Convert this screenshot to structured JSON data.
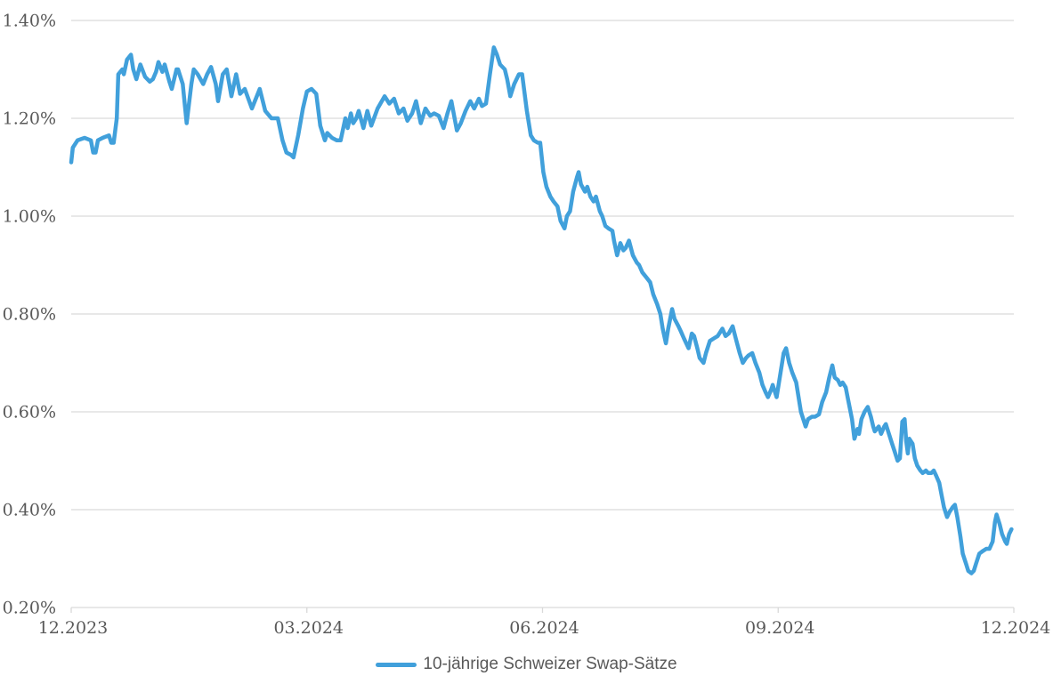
{
  "chart_data": {
    "type": "line",
    "title": "",
    "xlabel": "",
    "ylabel": "",
    "xlim": [
      0,
      12
    ],
    "ylim": [
      0.2,
      1.4
    ],
    "grid": "horizontal",
    "legend_position": "bottom-center",
    "background_color": "#FFFFFF",
    "gridline_color": "#D9D9D9",
    "axis_label_color": "#595959",
    "x_unit": "months since 12.2023",
    "y_unit": "percent",
    "x_ticks": [
      {
        "t": 0,
        "label": "12.2023"
      },
      {
        "t": 3,
        "label": "03.2024"
      },
      {
        "t": 6,
        "label": "06.2024"
      },
      {
        "t": 9,
        "label": "09.2024"
      },
      {
        "t": 12,
        "label": "12.2024"
      }
    ],
    "y_ticks": [
      {
        "v": 1.4,
        "label": "1.40%"
      },
      {
        "v": 1.2,
        "label": "1.20%"
      },
      {
        "v": 1.0,
        "label": "1.00%"
      },
      {
        "v": 0.8,
        "label": "0.80%"
      },
      {
        "v": 0.6,
        "label": "0.60%"
      },
      {
        "v": 0.4,
        "label": "0.40%"
      },
      {
        "v": 0.2,
        "label": "0.20%"
      }
    ],
    "series": [
      {
        "name": "10-jährige Schweizer Swap-Sätze",
        "color": "#41A0DB",
        "line_width": 4.5,
        "points": [
          [
            0,
            1.11
          ],
          [
            0.02,
            1.14
          ],
          [
            0.08,
            1.155
          ],
          [
            0.17,
            1.16
          ],
          [
            0.25,
            1.155
          ],
          [
            0.28,
            1.13
          ],
          [
            0.31,
            1.13
          ],
          [
            0.34,
            1.155
          ],
          [
            0.4,
            1.16
          ],
          [
            0.48,
            1.165
          ],
          [
            0.51,
            1.15
          ],
          [
            0.54,
            1.15
          ],
          [
            0.58,
            1.2
          ],
          [
            0.6,
            1.29
          ],
          [
            0.65,
            1.3
          ],
          [
            0.67,
            1.29
          ],
          [
            0.71,
            1.32
          ],
          [
            0.76,
            1.33
          ],
          [
            0.79,
            1.3
          ],
          [
            0.83,
            1.28
          ],
          [
            0.88,
            1.31
          ],
          [
            0.94,
            1.285
          ],
          [
            1,
            1.275
          ],
          [
            1.04,
            1.28
          ],
          [
            1.08,
            1.295
          ],
          [
            1.11,
            1.315
          ],
          [
            1.16,
            1.295
          ],
          [
            1.19,
            1.31
          ],
          [
            1.25,
            1.275
          ],
          [
            1.28,
            1.26
          ],
          [
            1.34,
            1.3
          ],
          [
            1.36,
            1.3
          ],
          [
            1.42,
            1.27
          ],
          [
            1.47,
            1.19
          ],
          [
            1.53,
            1.27
          ],
          [
            1.56,
            1.3
          ],
          [
            1.61,
            1.29
          ],
          [
            1.68,
            1.27
          ],
          [
            1.73,
            1.29
          ],
          [
            1.78,
            1.305
          ],
          [
            1.84,
            1.27
          ],
          [
            1.87,
            1.235
          ],
          [
            1.93,
            1.29
          ],
          [
            1.98,
            1.3
          ],
          [
            2.04,
            1.245
          ],
          [
            2.1,
            1.29
          ],
          [
            2.15,
            1.25
          ],
          [
            2.21,
            1.26
          ],
          [
            2.3,
            1.22
          ],
          [
            2.4,
            1.26
          ],
          [
            2.47,
            1.215
          ],
          [
            2.55,
            1.2
          ],
          [
            2.63,
            1.2
          ],
          [
            2.69,
            1.155
          ],
          [
            2.74,
            1.13
          ],
          [
            2.8,
            1.125
          ],
          [
            2.83,
            1.12
          ],
          [
            2.89,
            1.165
          ],
          [
            2.95,
            1.22
          ],
          [
            3,
            1.255
          ],
          [
            3.06,
            1.26
          ],
          [
            3.12,
            1.25
          ],
          [
            3.17,
            1.185
          ],
          [
            3.23,
            1.155
          ],
          [
            3.26,
            1.17
          ],
          [
            3.32,
            1.16
          ],
          [
            3.38,
            1.155
          ],
          [
            3.43,
            1.155
          ],
          [
            3.49,
            1.2
          ],
          [
            3.52,
            1.18
          ],
          [
            3.56,
            1.21
          ],
          [
            3.59,
            1.19
          ],
          [
            3.63,
            1.2
          ],
          [
            3.66,
            1.215
          ],
          [
            3.72,
            1.18
          ],
          [
            3.77,
            1.215
          ],
          [
            3.82,
            1.185
          ],
          [
            3.9,
            1.22
          ],
          [
            3.99,
            1.245
          ],
          [
            4.05,
            1.23
          ],
          [
            4.11,
            1.24
          ],
          [
            4.17,
            1.21
          ],
          [
            4.23,
            1.22
          ],
          [
            4.28,
            1.195
          ],
          [
            4.34,
            1.21
          ],
          [
            4.39,
            1.235
          ],
          [
            4.45,
            1.19
          ],
          [
            4.51,
            1.22
          ],
          [
            4.57,
            1.205
          ],
          [
            4.62,
            1.21
          ],
          [
            4.68,
            1.205
          ],
          [
            4.74,
            1.18
          ],
          [
            4.79,
            1.21
          ],
          [
            4.84,
            1.235
          ],
          [
            4.91,
            1.175
          ],
          [
            4.96,
            1.19
          ],
          [
            5.02,
            1.215
          ],
          [
            5.08,
            1.235
          ],
          [
            5.13,
            1.22
          ],
          [
            5.19,
            1.24
          ],
          [
            5.23,
            1.225
          ],
          [
            5.28,
            1.23
          ],
          [
            5.33,
            1.29
          ],
          [
            5.38,
            1.345
          ],
          [
            5.42,
            1.33
          ],
          [
            5.46,
            1.31
          ],
          [
            5.52,
            1.3
          ],
          [
            5.55,
            1.28
          ],
          [
            5.59,
            1.245
          ],
          [
            5.64,
            1.27
          ],
          [
            5.7,
            1.29
          ],
          [
            5.74,
            1.29
          ],
          [
            5.8,
            1.215
          ],
          [
            5.85,
            1.165
          ],
          [
            5.89,
            1.155
          ],
          [
            5.94,
            1.15
          ],
          [
            5.97,
            1.15
          ],
          [
            6.01,
            1.09
          ],
          [
            6.05,
            1.06
          ],
          [
            6.1,
            1.04
          ],
          [
            6.14,
            1.03
          ],
          [
            6.19,
            1.02
          ],
          [
            6.23,
            0.99
          ],
          [
            6.28,
            0.975
          ],
          [
            6.31,
            1
          ],
          [
            6.35,
            1.01
          ],
          [
            6.39,
            1.05
          ],
          [
            6.44,
            1.08
          ],
          [
            6.46,
            1.09
          ],
          [
            6.49,
            1.065
          ],
          [
            6.54,
            1.05
          ],
          [
            6.57,
            1.06
          ],
          [
            6.61,
            1.04
          ],
          [
            6.65,
            1.03
          ],
          [
            6.68,
            1.04
          ],
          [
            6.73,
            1.01
          ],
          [
            6.76,
            1
          ],
          [
            6.8,
            0.98
          ],
          [
            6.84,
            0.975
          ],
          [
            6.89,
            0.97
          ],
          [
            6.91,
            0.95
          ],
          [
            6.95,
            0.92
          ],
          [
            6.99,
            0.945
          ],
          [
            7.03,
            0.93
          ],
          [
            7.06,
            0.935
          ],
          [
            7.1,
            0.95
          ],
          [
            7.15,
            0.92
          ],
          [
            7.2,
            0.905
          ],
          [
            7.23,
            0.9
          ],
          [
            7.27,
            0.885
          ],
          [
            7.32,
            0.875
          ],
          [
            7.37,
            0.865
          ],
          [
            7.41,
            0.84
          ],
          [
            7.46,
            0.82
          ],
          [
            7.5,
            0.8
          ],
          [
            7.53,
            0.77
          ],
          [
            7.57,
            0.74
          ],
          [
            7.6,
            0.77
          ],
          [
            7.65,
            0.81
          ],
          [
            7.68,
            0.79
          ],
          [
            7.73,
            0.775
          ],
          [
            7.76,
            0.765
          ],
          [
            7.8,
            0.75
          ],
          [
            7.83,
            0.74
          ],
          [
            7.86,
            0.73
          ],
          [
            7.9,
            0.76
          ],
          [
            7.93,
            0.755
          ],
          [
            7.97,
            0.73
          ],
          [
            8,
            0.71
          ],
          [
            8.05,
            0.7
          ],
          [
            8.08,
            0.72
          ],
          [
            8.13,
            0.745
          ],
          [
            8.18,
            0.75
          ],
          [
            8.23,
            0.755
          ],
          [
            8.27,
            0.765
          ],
          [
            8.29,
            0.77
          ],
          [
            8.33,
            0.755
          ],
          [
            8.37,
            0.76
          ],
          [
            8.42,
            0.775
          ],
          [
            8.46,
            0.75
          ],
          [
            8.51,
            0.72
          ],
          [
            8.55,
            0.7
          ],
          [
            8.59,
            0.71
          ],
          [
            8.62,
            0.715
          ],
          [
            8.67,
            0.72
          ],
          [
            8.71,
            0.7
          ],
          [
            8.76,
            0.68
          ],
          [
            8.8,
            0.655
          ],
          [
            8.84,
            0.64
          ],
          [
            8.87,
            0.63
          ],
          [
            8.91,
            0.645
          ],
          [
            8.93,
            0.655
          ],
          [
            8.96,
            0.64
          ],
          [
            8.98,
            0.63
          ],
          [
            9.03,
            0.68
          ],
          [
            9.07,
            0.72
          ],
          [
            9.1,
            0.73
          ],
          [
            9.14,
            0.7
          ],
          [
            9.18,
            0.68
          ],
          [
            9.23,
            0.66
          ],
          [
            9.29,
            0.6
          ],
          [
            9.35,
            0.57
          ],
          [
            9.38,
            0.585
          ],
          [
            9.43,
            0.59
          ],
          [
            9.47,
            0.59
          ],
          [
            9.52,
            0.595
          ],
          [
            9.56,
            0.62
          ],
          [
            9.61,
            0.64
          ],
          [
            9.65,
            0.67
          ],
          [
            9.69,
            0.695
          ],
          [
            9.72,
            0.67
          ],
          [
            9.76,
            0.665
          ],
          [
            9.79,
            0.655
          ],
          [
            9.82,
            0.66
          ],
          [
            9.86,
            0.65
          ],
          [
            9.89,
            0.625
          ],
          [
            9.94,
            0.585
          ],
          [
            9.97,
            0.545
          ],
          [
            10.01,
            0.565
          ],
          [
            10.03,
            0.555
          ],
          [
            10.06,
            0.585
          ],
          [
            10.1,
            0.6
          ],
          [
            10.14,
            0.61
          ],
          [
            10.18,
            0.59
          ],
          [
            10.21,
            0.57
          ],
          [
            10.23,
            0.56
          ],
          [
            10.28,
            0.57
          ],
          [
            10.31,
            0.555
          ],
          [
            10.35,
            0.57
          ],
          [
            10.37,
            0.575
          ],
          [
            10.4,
            0.56
          ],
          [
            10.45,
            0.535
          ],
          [
            10.48,
            0.52
          ],
          [
            10.52,
            0.5
          ],
          [
            10.55,
            0.505
          ],
          [
            10.58,
            0.58
          ],
          [
            10.61,
            0.585
          ],
          [
            10.63,
            0.54
          ],
          [
            10.65,
            0.515
          ],
          [
            10.67,
            0.545
          ],
          [
            10.71,
            0.535
          ],
          [
            10.74,
            0.505
          ],
          [
            10.77,
            0.49
          ],
          [
            10.81,
            0.48
          ],
          [
            10.84,
            0.475
          ],
          [
            10.88,
            0.48
          ],
          [
            10.91,
            0.475
          ],
          [
            10.95,
            0.475
          ],
          [
            10.98,
            0.48
          ],
          [
            11.01,
            0.47
          ],
          [
            11.05,
            0.455
          ],
          [
            11.08,
            0.43
          ],
          [
            11.11,
            0.405
          ],
          [
            11.15,
            0.385
          ],
          [
            11.18,
            0.395
          ],
          [
            11.22,
            0.405
          ],
          [
            11.25,
            0.41
          ],
          [
            11.28,
            0.385
          ],
          [
            11.32,
            0.345
          ],
          [
            11.35,
            0.31
          ],
          [
            11.39,
            0.29
          ],
          [
            11.42,
            0.275
          ],
          [
            11.46,
            0.27
          ],
          [
            11.49,
            0.275
          ],
          [
            11.52,
            0.29
          ],
          [
            11.56,
            0.31
          ],
          [
            11.6,
            0.315
          ],
          [
            11.65,
            0.32
          ],
          [
            11.69,
            0.32
          ],
          [
            11.73,
            0.335
          ],
          [
            11.76,
            0.375
          ],
          [
            11.78,
            0.39
          ],
          [
            11.82,
            0.37
          ],
          [
            11.85,
            0.35
          ],
          [
            11.89,
            0.335
          ],
          [
            11.91,
            0.33
          ],
          [
            11.94,
            0.35
          ],
          [
            11.97,
            0.36
          ]
        ]
      }
    ]
  },
  "legend": {
    "label": "10-jährige Schweizer Swap-Sätze",
    "swatch_color": "#41A0DB"
  }
}
